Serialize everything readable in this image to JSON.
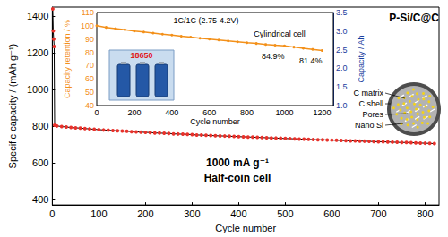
{
  "chart_data": [
    {
      "type": "line",
      "x_label": "Cycle number",
      "y_label": "Specific capacity / (mAh g⁻¹)",
      "annotations": [
        "1000 mA g⁻¹",
        "Half-coin cell"
      ],
      "x": [
        1,
        2,
        3,
        4,
        5,
        10,
        20,
        30,
        40,
        50,
        60,
        70,
        80,
        90,
        100,
        110,
        120,
        130,
        140,
        150,
        160,
        170,
        180,
        190,
        200,
        210,
        220,
        230,
        240,
        250,
        260,
        270,
        280,
        290,
        300,
        310,
        320,
        330,
        340,
        350,
        360,
        370,
        380,
        390,
        400,
        410,
        420,
        430,
        440,
        450,
        460,
        470,
        480,
        490,
        500,
        510,
        520,
        530,
        540,
        550,
        560,
        570,
        580,
        590,
        600,
        610,
        620,
        630,
        640,
        650,
        660,
        670,
        680,
        690,
        700,
        710,
        720,
        730,
        740,
        750,
        760,
        770,
        780,
        790,
        800,
        810,
        820
      ],
      "values": [
        1440,
        1320,
        1275,
        1235,
        805,
        801,
        798,
        795,
        793,
        791,
        789,
        787,
        785,
        783,
        781,
        779,
        778,
        776,
        775,
        773,
        772,
        770,
        769,
        767,
        766,
        765,
        763,
        762,
        761,
        760,
        758,
        757,
        756,
        755,
        754,
        752,
        751,
        750,
        749,
        748,
        747,
        746,
        745,
        744,
        743,
        742,
        741,
        740,
        739,
        738,
        737,
        736,
        735,
        734,
        733,
        732,
        731,
        730,
        729,
        728,
        727,
        726,
        726,
        725,
        724,
        723,
        722,
        721,
        720,
        720,
        719,
        718,
        717,
        716,
        715,
        715,
        714,
        713,
        712,
        711,
        711,
        710,
        709,
        708,
        707,
        706,
        705
      ],
      "color": "#e8312a",
      "marker": "circle",
      "line_style": "solid",
      "xlim": [
        0,
        830
      ],
      "xticks": [
        0,
        100,
        200,
        300,
        400,
        500,
        600,
        700,
        800
      ],
      "ylim": [
        370,
        1450
      ],
      "yticks": [
        400,
        600,
        800,
        1000,
        1200,
        1400
      ],
      "grid": false
    },
    {
      "type": "line",
      "title": "1C/1C (2.75-4.2V)",
      "subtitle": "Cylindrical cell",
      "x_label": "Cycle number",
      "y_label": "Capacity retention / %",
      "y2_label": "Capacity / Ah",
      "x": [
        0,
        50,
        100,
        150,
        200,
        250,
        300,
        350,
        400,
        450,
        500,
        550,
        600,
        650,
        700,
        750,
        800,
        850,
        900,
        950,
        1000,
        1050,
        1100,
        1150,
        1200
      ],
      "values": [
        100,
        98.8,
        97.9,
        97,
        96.1,
        95.3,
        94.5,
        93.7,
        93,
        92.2,
        91.5,
        90.7,
        90,
        89.3,
        88.6,
        88,
        87.3,
        86.7,
        86,
        85.4,
        84.9,
        84,
        83.1,
        82.3,
        81.4
      ],
      "color": "#f39019",
      "marker": "circle",
      "line_style": "solid",
      "annotations": [
        {
          "text": "84.9%",
          "x": 1000,
          "y": 84.9
        },
        {
          "text": "81.4%",
          "x": 1200,
          "y": 81.4
        }
      ],
      "xlim": [
        0,
        1260
      ],
      "xticks": [
        0,
        200,
        400,
        600,
        800,
        1000,
        1200
      ],
      "ylim": [
        40,
        110
      ],
      "yticks": [
        40,
        50,
        60,
        70,
        80,
        90,
        100,
        110
      ],
      "y2lim": [
        1.0,
        3.5
      ],
      "y2ticks": [
        {
          "value": 1.0,
          "label": "1.0"
        },
        1.5,
        {
          "value": 2.0,
          "label": "2.0"
        },
        2.5,
        {
          "value": 3.0,
          "label": "3.0"
        },
        3.5
      ],
      "grid": false
    }
  ],
  "photo": {
    "label": "18650"
  },
  "schematic": {
    "title": "P-Si/C@C",
    "labels": [
      "C matrix",
      "C shell",
      "Pores",
      "Nano Si"
    ]
  }
}
